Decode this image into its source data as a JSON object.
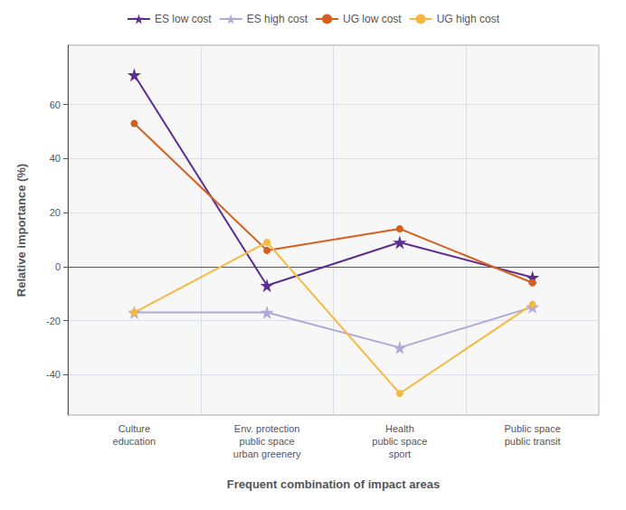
{
  "chart_data": {
    "type": "line",
    "categories": [
      "Culture\neducation",
      "Env. protection\npublic space\nurban greenery",
      "Health\npublic space\nsport",
      "Public space\npublic transit"
    ],
    "series": [
      {
        "name": "ES low cost",
        "color": "#5b2d8e",
        "marker": "star",
        "values": [
          71,
          -7,
          9,
          -4
        ]
      },
      {
        "name": "ES high cost",
        "color": "#b0a8d8",
        "marker": "star",
        "values": [
          -17,
          -17,
          -30,
          -15
        ]
      },
      {
        "name": "UG low cost",
        "color": "#d45f1e",
        "marker": "circle",
        "values": [
          53,
          6,
          14,
          -6
        ]
      },
      {
        "name": "UG high cost",
        "color": "#f5b942",
        "marker": "circle",
        "values": [
          -17,
          9,
          -47,
          -14
        ]
      }
    ],
    "xlabel": "Frequent combination of impact areas",
    "ylabel": "Relative importance (%)",
    "ylim": [
      -55,
      82
    ],
    "yticks": [
      -40,
      -20,
      0,
      20,
      40,
      60
    ],
    "grid": true,
    "legend": "top"
  }
}
